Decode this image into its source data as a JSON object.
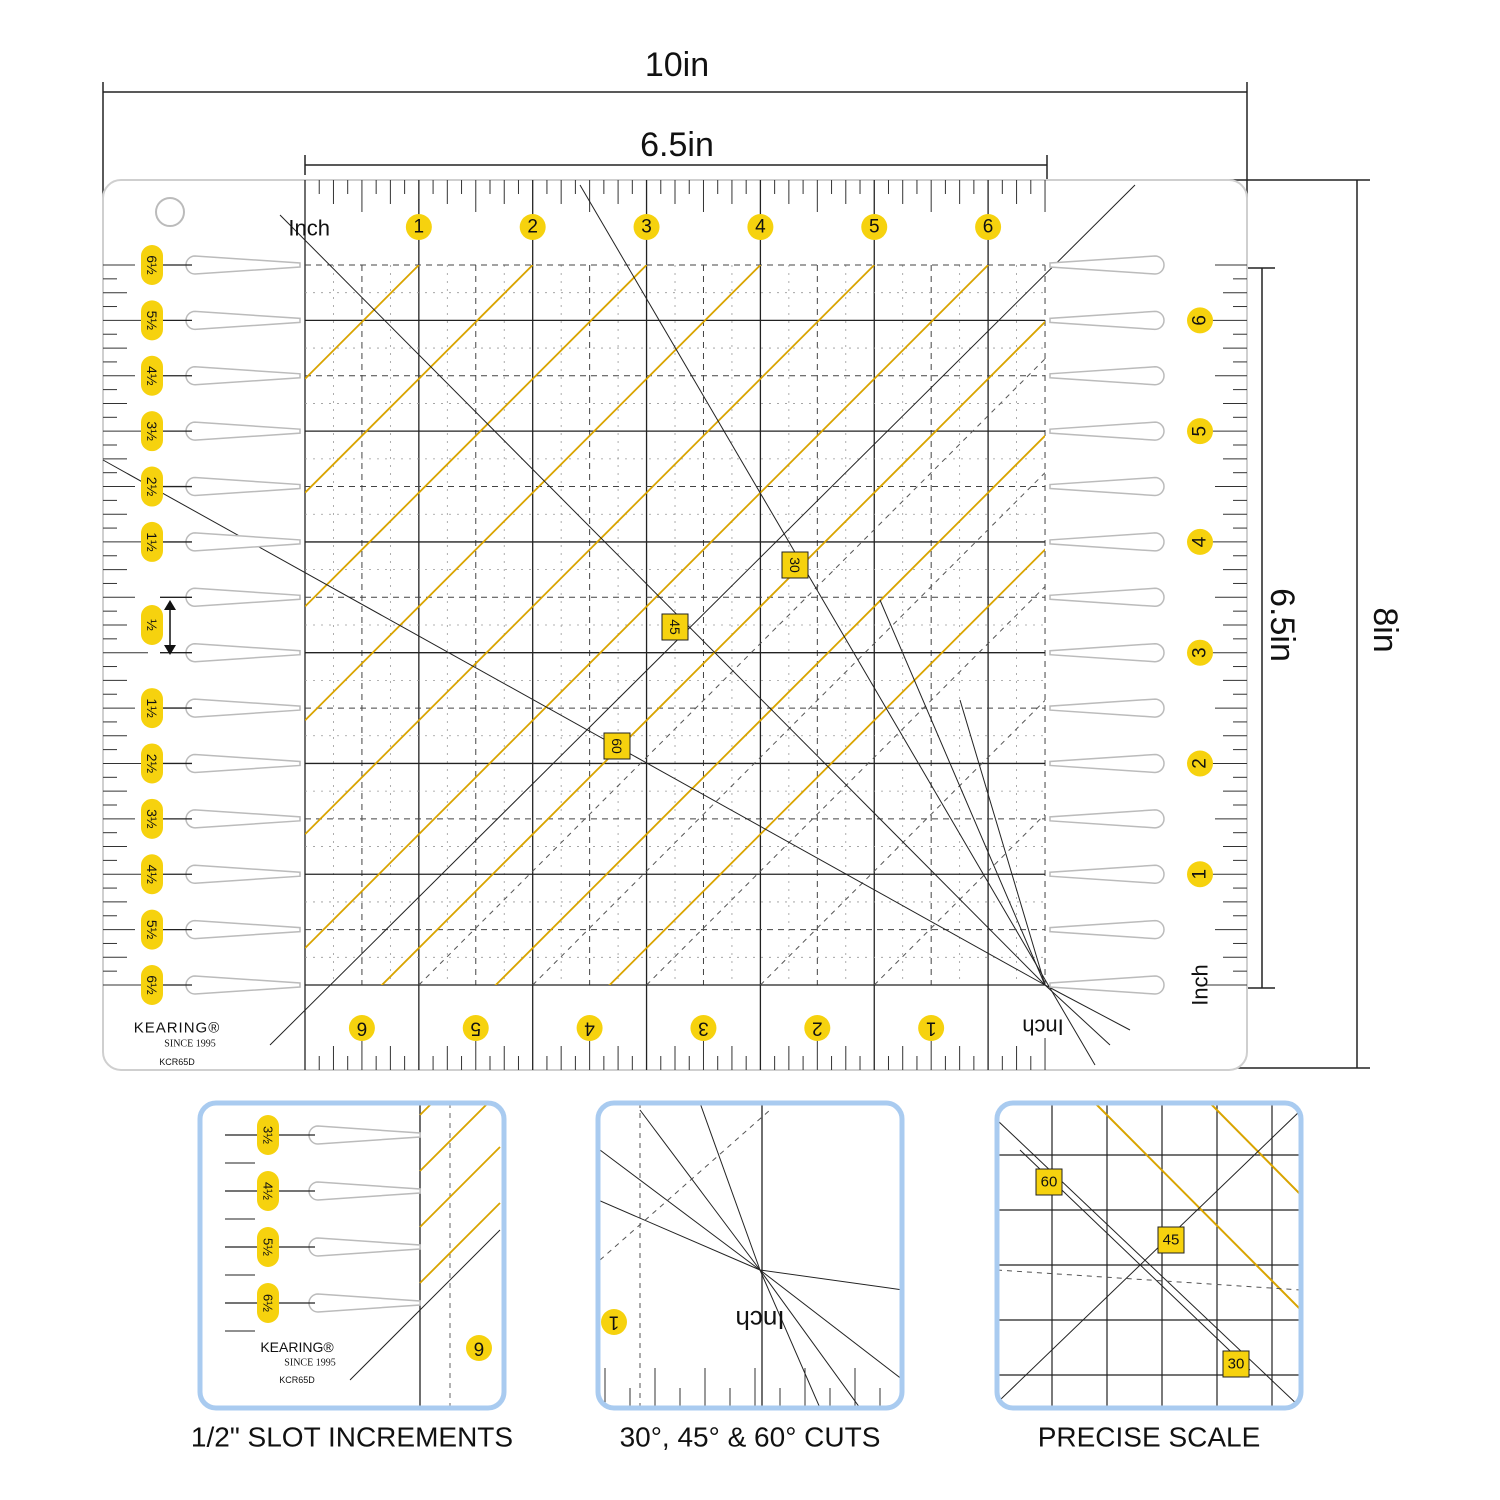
{
  "dimensions": {
    "width": "10in",
    "inner_width": "6.5in",
    "height": "8in",
    "inner_height": "6.5in"
  },
  "ruler": {
    "corner_label": "Inch",
    "top_numbers": [
      "1",
      "2",
      "3",
      "4",
      "5",
      "6"
    ],
    "bottom_numbers": [
      "6",
      "5",
      "4",
      "3",
      "2",
      "1"
    ],
    "bottom_label": "Inch",
    "right_numbers": [
      "6",
      "5",
      "4",
      "3",
      "2",
      "1"
    ],
    "right_label": "Inch",
    "left_slots": [
      "6½",
      "5½",
      "4½",
      "3½",
      "2½",
      "1½",
      "½",
      "1½",
      "2½",
      "3½",
      "4½",
      "5½",
      "6½"
    ],
    "angles": [
      "30",
      "45",
      "60"
    ],
    "brand": "KEARING®",
    "since": "SINCE 1995",
    "model": "KCR65D"
  },
  "insets": [
    {
      "caption": "1/2\" SLOT INCREMENTS",
      "labels": [
        "3½",
        "4½",
        "5½",
        "6½",
        "KEARING®",
        "SINCE 1995",
        "KCR65D",
        "6"
      ]
    },
    {
      "caption": "30°, 45° & 60° CUTS",
      "labels": [
        "1",
        "Inch"
      ]
    },
    {
      "caption": "PRECISE SCALE",
      "labels": [
        "60",
        "45",
        "30"
      ]
    }
  ]
}
